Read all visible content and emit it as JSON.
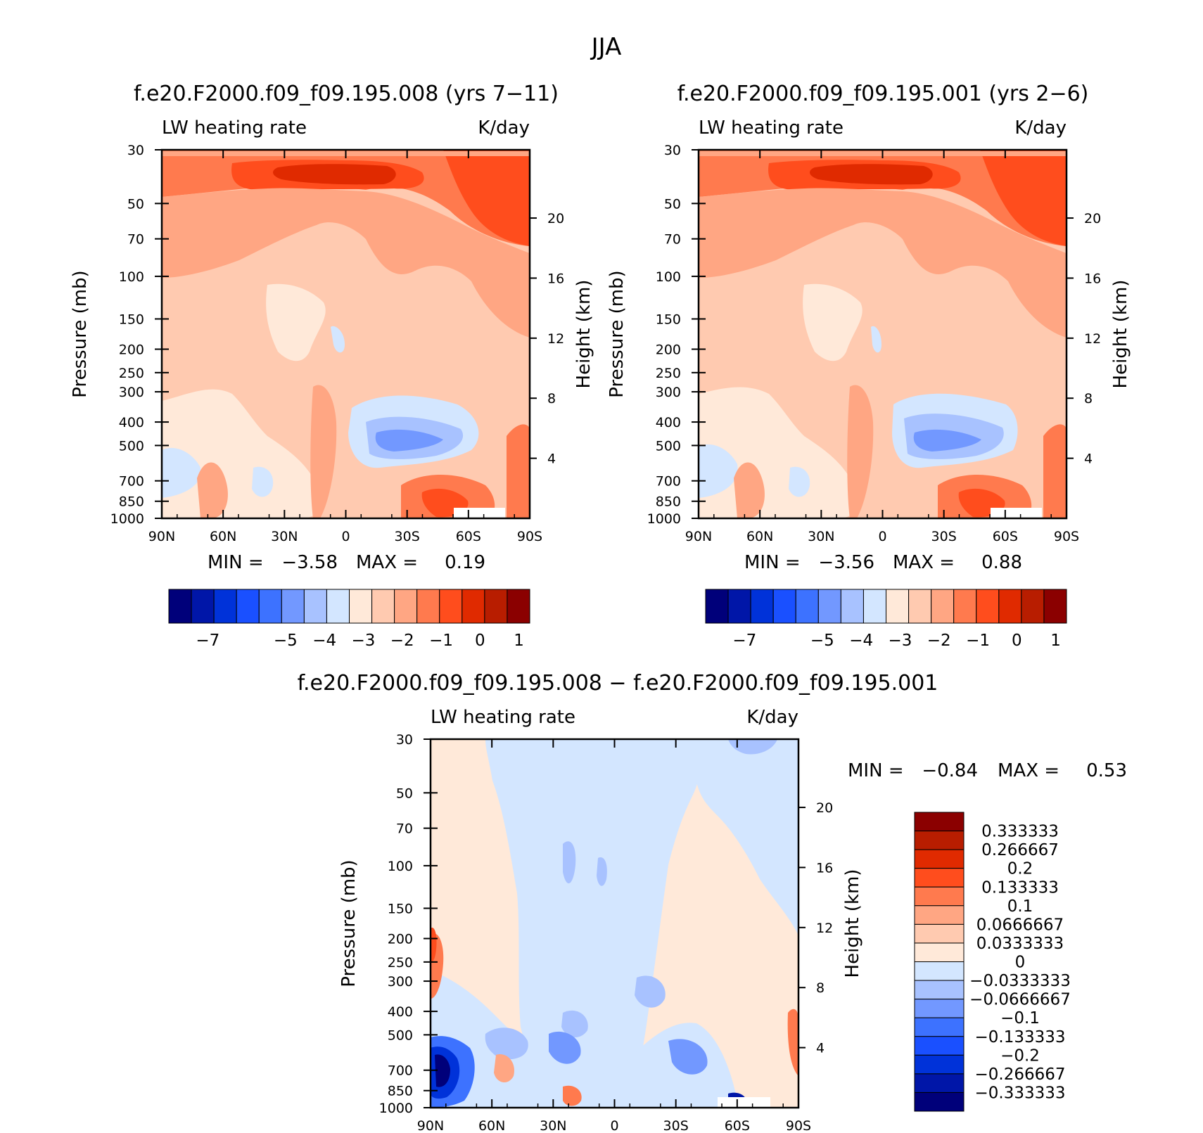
{
  "title": "JJA",
  "colors": {
    "diverging": [
      "#00007a",
      "#0016a8",
      "#0032d9",
      "#1a50ff",
      "#3d72ff",
      "#7298ff",
      "#a8c2ff",
      "#d3e6ff",
      "#ffe9d9",
      "#ffcab0",
      "#ffa683",
      "#ff7a4e",
      "#ff4d1d",
      "#e02a00",
      "#b81d00",
      "#8b0000"
    ]
  },
  "chart_data": [
    {
      "type": "contour",
      "name": "panel-top-left",
      "title": "f.e20.F2000.f09_f09.195.008 (yrs 7−11)",
      "left_label": "LW heating rate",
      "right_label": "K/day",
      "ylabel": "Pressure (mb)",
      "y2label": "Height (km)",
      "x_ticks": [
        "90N",
        "60N",
        "30N",
        "0",
        "30S",
        "60S",
        "90S"
      ],
      "y_ticks": [
        "30",
        "50",
        "70",
        "100",
        "150",
        "200",
        "250",
        "300",
        "400",
        "500",
        "700",
        "850",
        "1000"
      ],
      "y2_ticks": [
        "20",
        "16",
        "12",
        "8",
        "4"
      ],
      "stats": {
        "min_label": "MIN =",
        "min": "−3.58",
        "max_label": "MAX =",
        "max": "0.19"
      },
      "colorbar": {
        "orientation": "horizontal",
        "labels": [
          "−7",
          "−5",
          "−4",
          "−3",
          "−2",
          "−1",
          "0",
          "1"
        ]
      }
    },
    {
      "type": "contour",
      "name": "panel-top-right",
      "title": "f.e20.F2000.f09_f09.195.001 (yrs 2−6)",
      "left_label": "LW heating rate",
      "right_label": "K/day",
      "ylabel": "Pressure (mb)",
      "y2label": "Height (km)",
      "x_ticks": [
        "90N",
        "60N",
        "30N",
        "0",
        "30S",
        "60S",
        "90S"
      ],
      "y_ticks": [
        "30",
        "50",
        "70",
        "100",
        "150",
        "200",
        "250",
        "300",
        "400",
        "500",
        "700",
        "850",
        "1000"
      ],
      "y2_ticks": [
        "20",
        "16",
        "12",
        "8",
        "4"
      ],
      "stats": {
        "min_label": "MIN =",
        "min": "−3.56",
        "max_label": "MAX =",
        "max": "0.88"
      },
      "colorbar": {
        "orientation": "horizontal",
        "labels": [
          "−7",
          "−5",
          "−4",
          "−3",
          "−2",
          "−1",
          "0",
          "1"
        ]
      }
    },
    {
      "type": "contour",
      "name": "panel-difference",
      "title": "f.e20.F2000.f09_f09.195.008 − f.e20.F2000.f09_f09.195.001",
      "left_label": "LW heating rate",
      "right_label": "K/day",
      "ylabel": "Pressure (mb)",
      "y2label": "Height (km)",
      "x_ticks": [
        "90N",
        "60N",
        "30N",
        "0",
        "30S",
        "60S",
        "90S"
      ],
      "y_ticks": [
        "30",
        "50",
        "70",
        "100",
        "150",
        "200",
        "250",
        "300",
        "400",
        "500",
        "700",
        "850",
        "1000"
      ],
      "y2_ticks": [
        "20",
        "16",
        "12",
        "8",
        "4"
      ],
      "stats": {
        "min_label": "MIN =",
        "min": "−0.84",
        "max_label": "MAX =",
        "max": "0.53"
      },
      "colorbar": {
        "orientation": "vertical",
        "labels": [
          "0.333333",
          "0.266667",
          "0.2",
          "0.133333",
          "0.1",
          "0.0666667",
          "0.0333333",
          "0",
          "−0.0333333",
          "−0.0666667",
          "−0.1",
          "−0.133333",
          "−0.2",
          "−0.266667",
          "−0.333333"
        ]
      }
    }
  ]
}
